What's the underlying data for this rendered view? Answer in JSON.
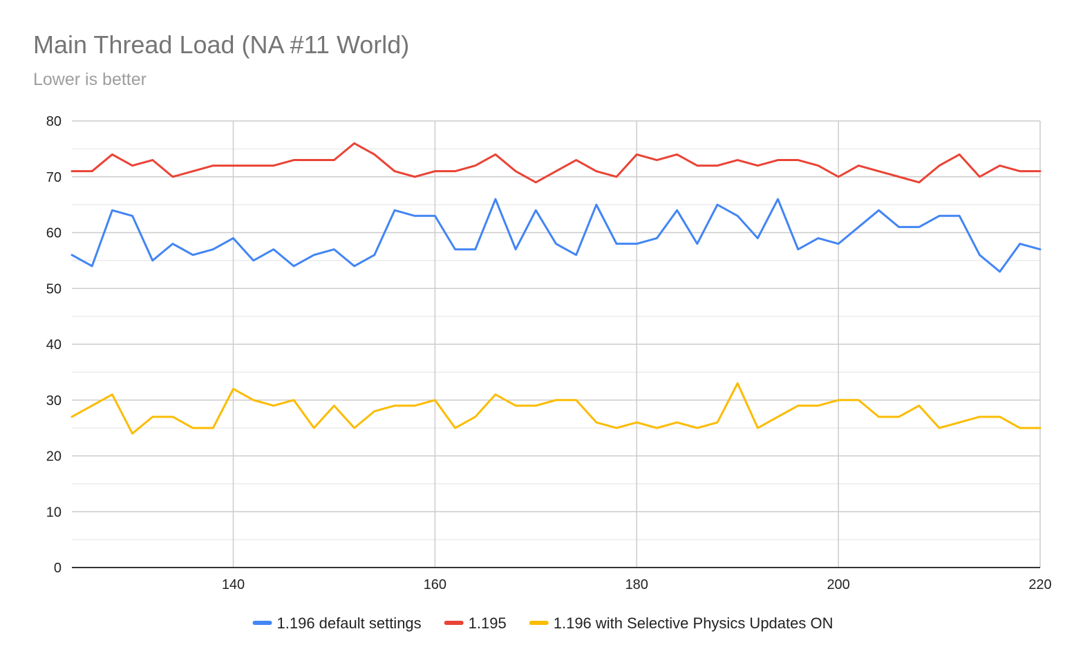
{
  "chart_data": {
    "type": "line",
    "title": "Main Thread Load (NA #11 World)",
    "subtitle": "Lower is better",
    "xlabel": "",
    "ylabel": "",
    "xlim": [
      124,
      220
    ],
    "ylim": [
      0,
      80
    ],
    "x_ticks": [
      140,
      160,
      180,
      200,
      220
    ],
    "y_ticks": [
      0,
      10,
      20,
      30,
      40,
      50,
      60,
      70,
      80
    ],
    "grid": true,
    "legend_position": "bottom",
    "x": [
      124,
      126,
      128,
      130,
      132,
      134,
      136,
      138,
      140,
      142,
      144,
      146,
      148,
      150,
      152,
      154,
      156,
      158,
      160,
      162,
      164,
      166,
      168,
      170,
      172,
      174,
      176,
      178,
      180,
      182,
      184,
      186,
      188,
      190,
      192,
      194,
      196,
      198,
      200,
      202,
      204,
      206,
      208,
      210,
      212,
      214,
      216,
      218,
      220
    ],
    "series": [
      {
        "name": "1.196 default settings",
        "color": "#4285f4",
        "values": [
          56,
          54,
          64,
          63,
          55,
          58,
          56,
          57,
          59,
          55,
          57,
          54,
          56,
          57,
          54,
          56,
          64,
          63,
          63,
          57,
          57,
          66,
          57,
          64,
          58,
          56,
          65,
          58,
          58,
          59,
          64,
          58,
          65,
          63,
          59,
          66,
          57,
          59,
          58,
          61,
          64,
          61,
          61,
          63,
          63,
          56,
          53,
          58,
          57
        ]
      },
      {
        "name": "1.195",
        "color": "#ea4335",
        "values": [
          71,
          71,
          74,
          72,
          73,
          70,
          71,
          72,
          72,
          72,
          72,
          73,
          73,
          73,
          76,
          74,
          71,
          70,
          71,
          71,
          72,
          74,
          71,
          69,
          71,
          73,
          71,
          70,
          74,
          73,
          74,
          72,
          72,
          73,
          72,
          73,
          73,
          72,
          70,
          72,
          71,
          70,
          69,
          72,
          74,
          70,
          72,
          71,
          71
        ]
      },
      {
        "name": "1.196 with Selective Physics Updates ON",
        "color": "#fbbc04",
        "values": [
          27,
          29,
          31,
          24,
          27,
          27,
          25,
          25,
          32,
          30,
          29,
          30,
          25,
          29,
          25,
          28,
          29,
          29,
          30,
          25,
          27,
          31,
          29,
          29,
          30,
          30,
          26,
          25,
          26,
          25,
          26,
          25,
          26,
          33,
          25,
          27,
          29,
          29,
          30,
          30,
          27,
          27,
          29,
          25,
          26,
          27,
          27,
          25,
          25
        ]
      }
    ]
  }
}
